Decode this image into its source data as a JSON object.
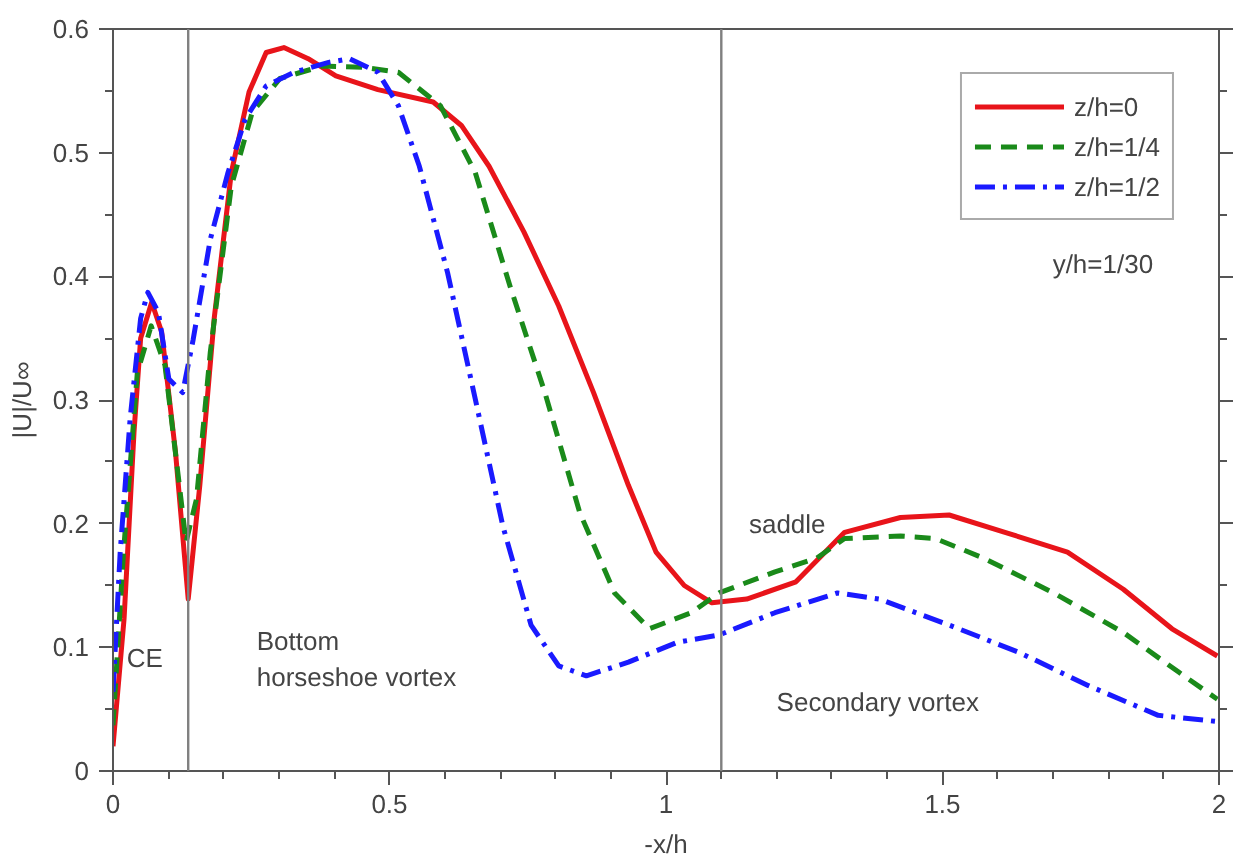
{
  "chart_data": {
    "type": "line",
    "xlabel": "-x/h",
    "ylabel": "|U|/U∞",
    "xlim": [
      0,
      2
    ],
    "ylim": [
      0,
      0.6
    ],
    "xticks": [
      0,
      0.5,
      1,
      1.5,
      2,
      {
        "value": 0.1,
        "label": null
      },
      {
        "value": 0.2,
        "label": null
      },
      {
        "value": 0.3,
        "label": null
      },
      {
        "value": 0.4,
        "label": null
      },
      {
        "value": 0.6,
        "label": null
      },
      {
        "value": 0.7,
        "label": null
      },
      {
        "value": 0.8,
        "label": null
      },
      {
        "value": 0.9,
        "label": null
      },
      {
        "value": 1.1,
        "label": null
      },
      {
        "value": 1.2,
        "label": null
      },
      {
        "value": 1.3,
        "label": null
      },
      {
        "value": 1.4,
        "label": null
      },
      {
        "value": 1.6,
        "label": null
      },
      {
        "value": 1.7,
        "label": null
      },
      {
        "value": 1.8,
        "label": null
      },
      {
        "value": 1.9,
        "label": null
      }
    ],
    "yticks": [
      0,
      0.1,
      0.2,
      0.3,
      0.4,
      0.5,
      0.6,
      {
        "value": 0.05,
        "label": null
      },
      {
        "value": 0.15,
        "label": null
      },
      {
        "value": 0.25,
        "label": null
      },
      {
        "value": 0.35,
        "label": null
      },
      {
        "value": 0.45,
        "label": null
      },
      {
        "value": 0.55,
        "label": null
      }
    ],
    "grid": false,
    "legend": "top right",
    "series": [
      {
        "name": "z/h=0",
        "color": "#e8141a",
        "line_style": "solid",
        "x": [
          0,
          0.02,
          0.038,
          0.05,
          0.07,
          0.088,
          0.113,
          0.136,
          0.157,
          0.183,
          0.214,
          0.246,
          0.277,
          0.309,
          0.353,
          0.403,
          0.479,
          0.579,
          0.63,
          0.68,
          0.743,
          0.806,
          0.869,
          0.932,
          0.982,
          1.033,
          1.083,
          1.146,
          1.235,
          1.323,
          1.424,
          1.512,
          1.613,
          1.726,
          1.827,
          1.915,
          1.997
        ],
        "values": [
          0.02,
          0.123,
          0.274,
          0.35,
          0.379,
          0.355,
          0.258,
          0.139,
          0.231,
          0.366,
          0.484,
          0.549,
          0.581,
          0.585,
          0.576,
          0.562,
          0.551,
          0.541,
          0.522,
          0.489,
          0.436,
          0.376,
          0.306,
          0.231,
          0.177,
          0.15,
          0.136,
          0.139,
          0.153,
          0.193,
          0.205,
          0.207,
          0.193,
          0.177,
          0.147,
          0.115,
          0.093
        ]
      },
      {
        "name": "z/h=1/4",
        "color": "#1a8a1a",
        "line_style": "dashed",
        "x": [
          0,
          0.019,
          0.044,
          0.069,
          0.094,
          0.12,
          0.132,
          0.151,
          0.176,
          0.214,
          0.252,
          0.302,
          0.378,
          0.453,
          0.516,
          0.592,
          0.655,
          0.718,
          0.781,
          0.844,
          0.907,
          0.97,
          1.046,
          1.096,
          1.197,
          1.272,
          1.323,
          1.424,
          1.487,
          1.575,
          1.701,
          1.827,
          1.927,
          1.997
        ],
        "values": [
          0.037,
          0.177,
          0.322,
          0.36,
          0.328,
          0.231,
          0.185,
          0.22,
          0.339,
          0.473,
          0.533,
          0.56,
          0.57,
          0.569,
          0.565,
          0.538,
          0.484,
          0.392,
          0.306,
          0.209,
          0.144,
          0.115,
          0.128,
          0.144,
          0.161,
          0.172,
          0.188,
          0.19,
          0.188,
          0.172,
          0.144,
          0.112,
          0.08,
          0.058
        ]
      },
      {
        "name": "z/h=1/2",
        "color": "#1a1aff",
        "line_style": "dashdot",
        "x": [
          0,
          0.013,
          0.031,
          0.05,
          0.063,
          0.082,
          0.101,
          0.126,
          0.145,
          0.176,
          0.208,
          0.239,
          0.277,
          0.327,
          0.39,
          0.428,
          0.479,
          0.516,
          0.554,
          0.605,
          0.655,
          0.705,
          0.756,
          0.806,
          0.856,
          0.932,
          1.02,
          1.096,
          1.197,
          1.31,
          1.386,
          1.512,
          1.638,
          1.764,
          1.89,
          1.997
        ],
        "values": [
          0.064,
          0.177,
          0.285,
          0.366,
          0.387,
          0.371,
          0.317,
          0.306,
          0.349,
          0.43,
          0.484,
          0.527,
          0.554,
          0.565,
          0.573,
          0.576,
          0.565,
          0.538,
          0.489,
          0.403,
          0.301,
          0.198,
          0.118,
          0.085,
          0.077,
          0.088,
          0.104,
          0.11,
          0.128,
          0.144,
          0.139,
          0.118,
          0.096,
          0.069,
          0.045,
          0.04
        ]
      }
    ],
    "ref_lines": [
      {
        "axis": "x",
        "value": 0.136,
        "color": "#808080"
      },
      {
        "axis": "x",
        "value": 1.1,
        "color": "#808080"
      }
    ],
    "annotations": [
      "CE",
      "Bottom\nhorseshoe vortex",
      "saddle",
      "Secondary vortex",
      "y/h=1/30"
    ]
  }
}
